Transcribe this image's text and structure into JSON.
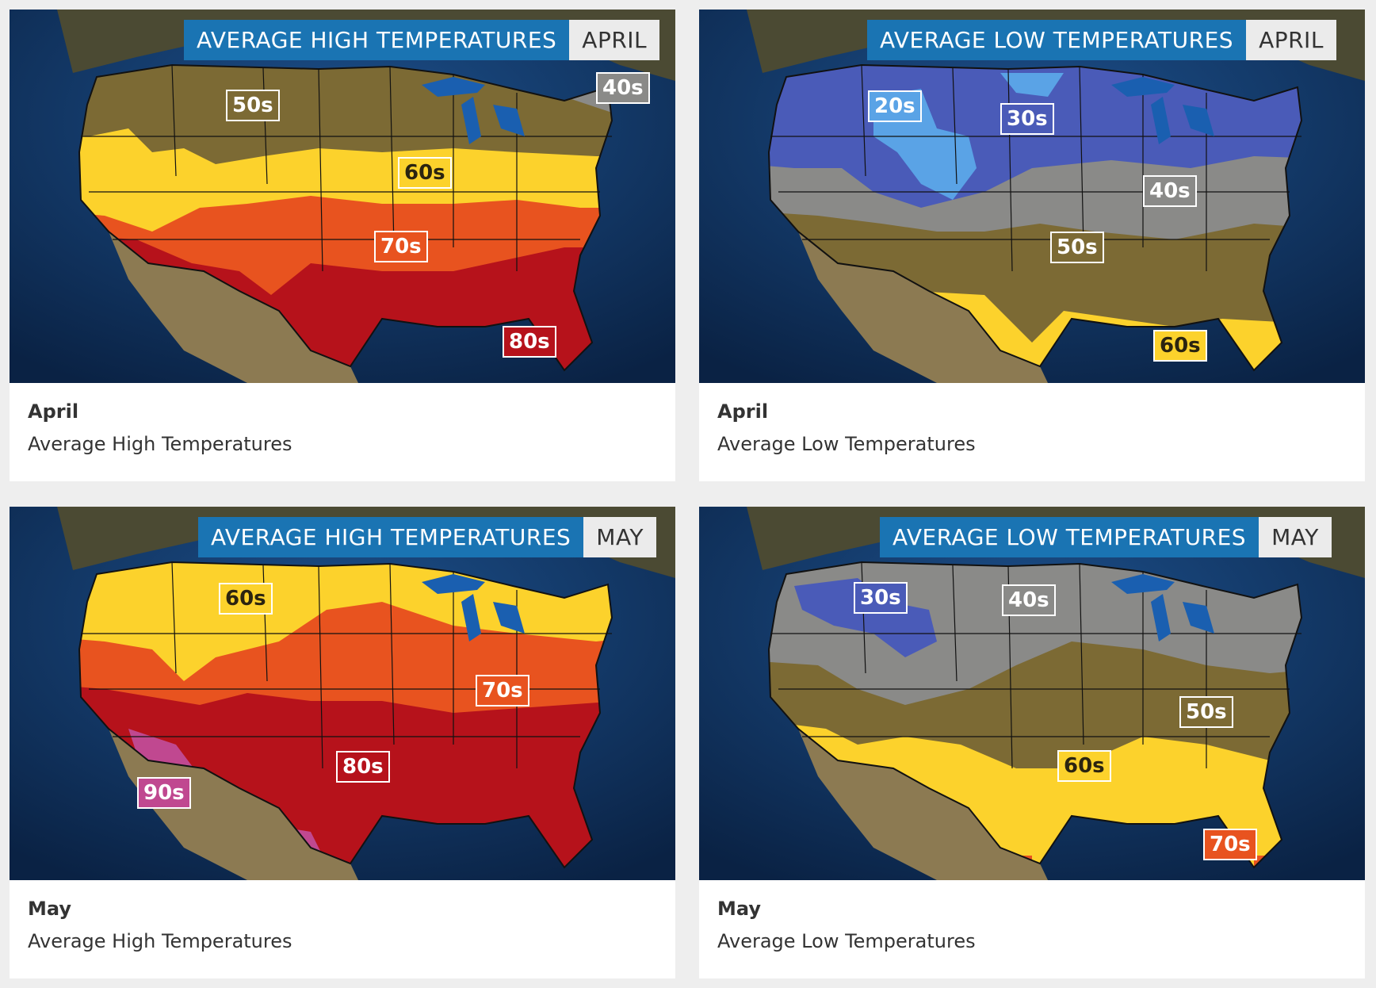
{
  "colors": {
    "ocean": "#0e2f5a",
    "land": "#75653a",
    "band_40s": "#8a8a88",
    "band_50s": "#7c6a34",
    "band_60s": "#fcd22c",
    "band_70s": "#e8531f",
    "band_80s": "#b6121b",
    "band_90s": "#c04890",
    "band_20s": "#5aa3e6",
    "band_30s": "#4a5bb8",
    "title_blue": "#1a74b3"
  },
  "cards": [
    {
      "title": "AVERAGE HIGH TEMPERATURES",
      "month_tag": "APRIL",
      "caption_month": "April",
      "caption_text": "Average High Temperatures",
      "labels": [
        {
          "text": "50s",
          "band": "band_50s"
        },
        {
          "text": "40s",
          "band": "band_40s"
        },
        {
          "text": "60s",
          "band": "band_60s"
        },
        {
          "text": "70s",
          "band": "band_70s"
        },
        {
          "text": "80s",
          "band": "band_80s"
        }
      ]
    },
    {
      "title": "AVERAGE LOW TEMPERATURES",
      "month_tag": "APRIL",
      "caption_month": "April",
      "caption_text": "Average Low Temperatures",
      "labels": [
        {
          "text": "20s",
          "band": "band_20s"
        },
        {
          "text": "30s",
          "band": "band_30s"
        },
        {
          "text": "40s",
          "band": "band_40s"
        },
        {
          "text": "50s",
          "band": "band_50s"
        },
        {
          "text": "60s",
          "band": "band_60s"
        }
      ]
    },
    {
      "title": "AVERAGE HIGH TEMPERATURES",
      "month_tag": "MAY",
      "caption_month": "May",
      "caption_text": "Average High Temperatures",
      "labels": [
        {
          "text": "60s",
          "band": "band_60s"
        },
        {
          "text": "70s",
          "band": "band_70s"
        },
        {
          "text": "80s",
          "band": "band_80s"
        },
        {
          "text": "90s",
          "band": "band_90s"
        }
      ]
    },
    {
      "title": "AVERAGE LOW TEMPERATURES",
      "month_tag": "MAY",
      "caption_month": "May",
      "caption_text": "Average Low Temperatures",
      "labels": [
        {
          "text": "30s",
          "band": "band_30s"
        },
        {
          "text": "40s",
          "band": "band_40s"
        },
        {
          "text": "50s",
          "band": "band_50s"
        },
        {
          "text": "60s",
          "band": "band_60s"
        },
        {
          "text": "70s",
          "band": "band_70s"
        }
      ]
    }
  ]
}
